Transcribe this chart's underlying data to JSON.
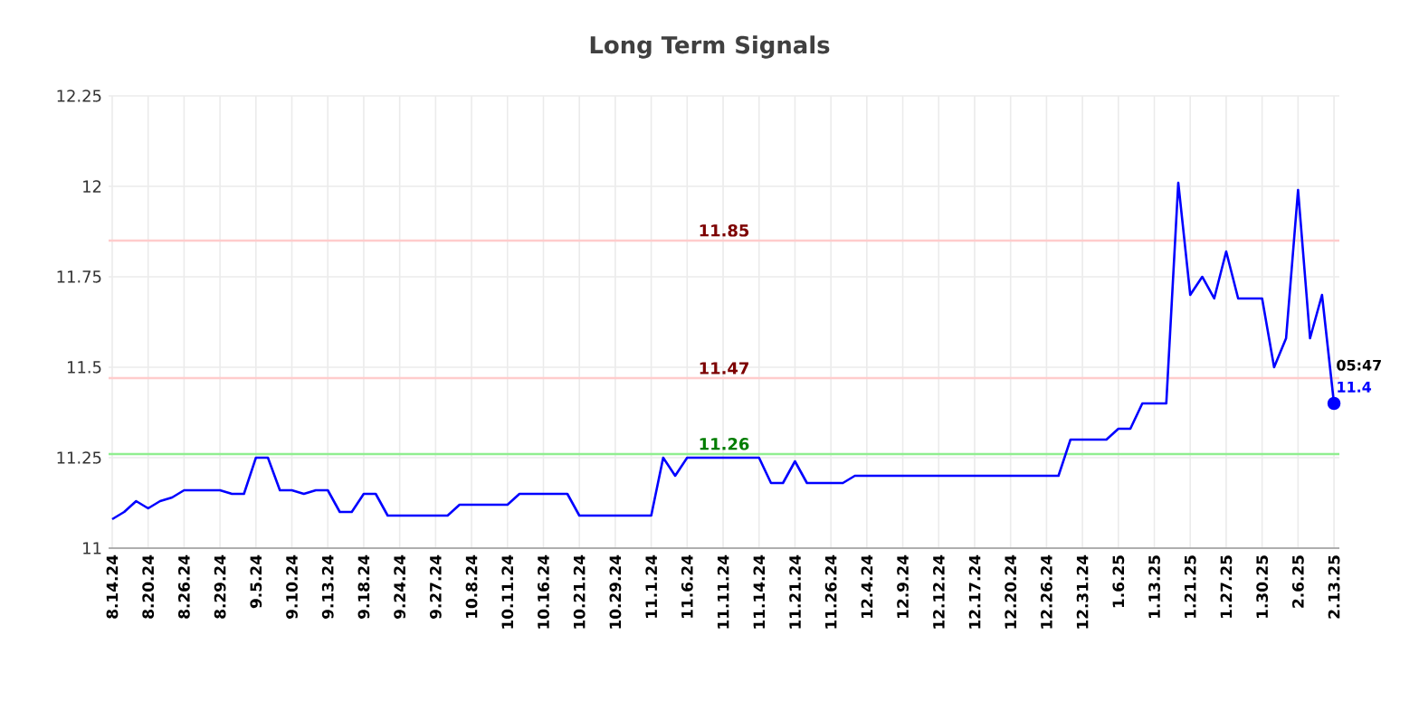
{
  "chart_data": {
    "type": "line",
    "title": "Long Term Signals",
    "ylim": [
      11,
      12.25
    ],
    "yticks": [
      11,
      11.25,
      11.5,
      11.75,
      12,
      12.25
    ],
    "categories": [
      "8.14.24",
      null,
      null,
      "8.20.24",
      null,
      null,
      "8.26.24",
      null,
      null,
      "8.29.24",
      null,
      null,
      "9.5.24",
      null,
      null,
      "9.10.24",
      null,
      null,
      "9.13.24",
      null,
      null,
      "9.18.24",
      null,
      null,
      "9.24.24",
      null,
      null,
      "9.27.24",
      null,
      null,
      "10.8.24",
      null,
      null,
      "10.11.24",
      null,
      null,
      "10.16.24",
      null,
      null,
      "10.21.24",
      null,
      null,
      "10.29.24",
      null,
      null,
      "11.1.24",
      null,
      null,
      "11.6.24",
      null,
      null,
      "11.11.24",
      null,
      null,
      "11.14.24",
      null,
      null,
      "11.21.24",
      null,
      null,
      "11.26.24",
      null,
      null,
      "12.4.24",
      null,
      null,
      "12.9.24",
      null,
      null,
      "12.12.24",
      null,
      null,
      "12.17.24",
      null,
      null,
      "12.20.24",
      null,
      null,
      "12.26.24",
      null,
      null,
      "12.31.24",
      null,
      null,
      "1.6.25",
      null,
      null,
      "1.13.25",
      null,
      null,
      "1.21.25",
      null,
      null,
      "1.27.25",
      null,
      null,
      "1.30.25",
      null,
      null,
      "2.6.25",
      null,
      null,
      "2.13.25"
    ],
    "grid": true,
    "ref_lines": [
      {
        "axis": "y",
        "value": 11.85,
        "label": "11.85",
        "color": "#ffcccc"
      },
      {
        "axis": "y",
        "value": 11.47,
        "label": "11.47",
        "color": "#ffcccc"
      },
      {
        "axis": "y",
        "value": 11.26,
        "label": "11.26",
        "color": "#90ee90"
      }
    ],
    "annotations": [
      {
        "text": "05:47",
        "x": "2.13.25",
        "y": 11.4
      }
    ],
    "series": [
      {
        "type": "line",
        "color": "#0000ff",
        "marker": "none",
        "values": [
          11.08,
          11.1,
          11.13,
          11.11,
          11.13,
          11.14,
          11.16,
          11.16,
          11.16,
          11.16,
          11.15,
          11.15,
          11.25,
          11.25,
          11.16,
          11.16,
          11.15,
          11.16,
          11.16,
          11.1,
          11.1,
          11.15,
          11.15,
          11.09,
          11.09,
          11.09,
          11.09,
          11.09,
          11.09,
          11.12,
          11.12,
          11.12,
          11.12,
          11.12,
          11.15,
          11.15,
          11.15,
          11.15,
          11.15,
          11.09,
          11.09,
          11.09,
          11.09,
          11.09,
          11.09,
          11.09,
          11.25,
          11.2,
          11.25,
          11.25,
          11.25,
          11.25,
          11.25,
          11.25,
          11.25,
          11.18,
          11.18,
          11.24,
          11.18,
          11.18,
          11.18,
          11.18,
          11.2,
          11.2,
          11.2,
          11.2,
          11.2,
          11.2,
          11.2,
          11.2,
          11.2,
          11.2,
          11.2,
          11.2,
          11.2,
          11.2,
          11.2,
          11.2,
          11.2,
          11.2,
          11.3,
          11.3,
          11.3,
          11.3,
          11.33,
          11.33,
          11.4,
          11.4,
          11.4,
          12.01,
          11.7,
          11.75,
          11.69,
          11.82,
          11.69,
          11.69,
          11.69,
          11.5,
          11.58,
          11.99,
          11.58,
          11.7,
          11.4
        ]
      },
      {
        "type": "scatter",
        "color": "#0000ff",
        "marker": "circle",
        "values": [
          null,
          null,
          null,
          null,
          null,
          null,
          null,
          null,
          null,
          null,
          null,
          null,
          null,
          null,
          null,
          null,
          null,
          null,
          null,
          null,
          null,
          null,
          null,
          null,
          null,
          null,
          null,
          null,
          null,
          null,
          null,
          null,
          null,
          null,
          null,
          null,
          null,
          null,
          null,
          null,
          null,
          null,
          null,
          null,
          null,
          null,
          null,
          null,
          null,
          null,
          null,
          null,
          null,
          null,
          null,
          null,
          null,
          null,
          null,
          null,
          null,
          null,
          null,
          null,
          null,
          null,
          null,
          null,
          null,
          null,
          null,
          null,
          null,
          null,
          null,
          null,
          null,
          null,
          null,
          null,
          null,
          null,
          null,
          null,
          null,
          null,
          null,
          null,
          null,
          null,
          null,
          null,
          null,
          null,
          null,
          null,
          null,
          null,
          null,
          null,
          null,
          null,
          11.4
        ],
        "value_labels": [
          null,
          null,
          null,
          null,
          null,
          null,
          null,
          null,
          null,
          null,
          null,
          null,
          null,
          null,
          null,
          null,
          null,
          null,
          null,
          null,
          null,
          null,
          null,
          null,
          null,
          null,
          null,
          null,
          null,
          null,
          null,
          null,
          null,
          null,
          null,
          null,
          null,
          null,
          null,
          null,
          null,
          null,
          null,
          null,
          null,
          null,
          null,
          null,
          null,
          null,
          null,
          null,
          null,
          null,
          null,
          null,
          null,
          null,
          null,
          null,
          null,
          null,
          null,
          null,
          null,
          null,
          null,
          null,
          null,
          null,
          null,
          null,
          null,
          null,
          null,
          null,
          null,
          null,
          null,
          null,
          null,
          null,
          null,
          null,
          null,
          null,
          null,
          null,
          null,
          null,
          null,
          null,
          null,
          null,
          null,
          null,
          null,
          null,
          null,
          null,
          null,
          null,
          "11.4"
        ]
      }
    ]
  }
}
